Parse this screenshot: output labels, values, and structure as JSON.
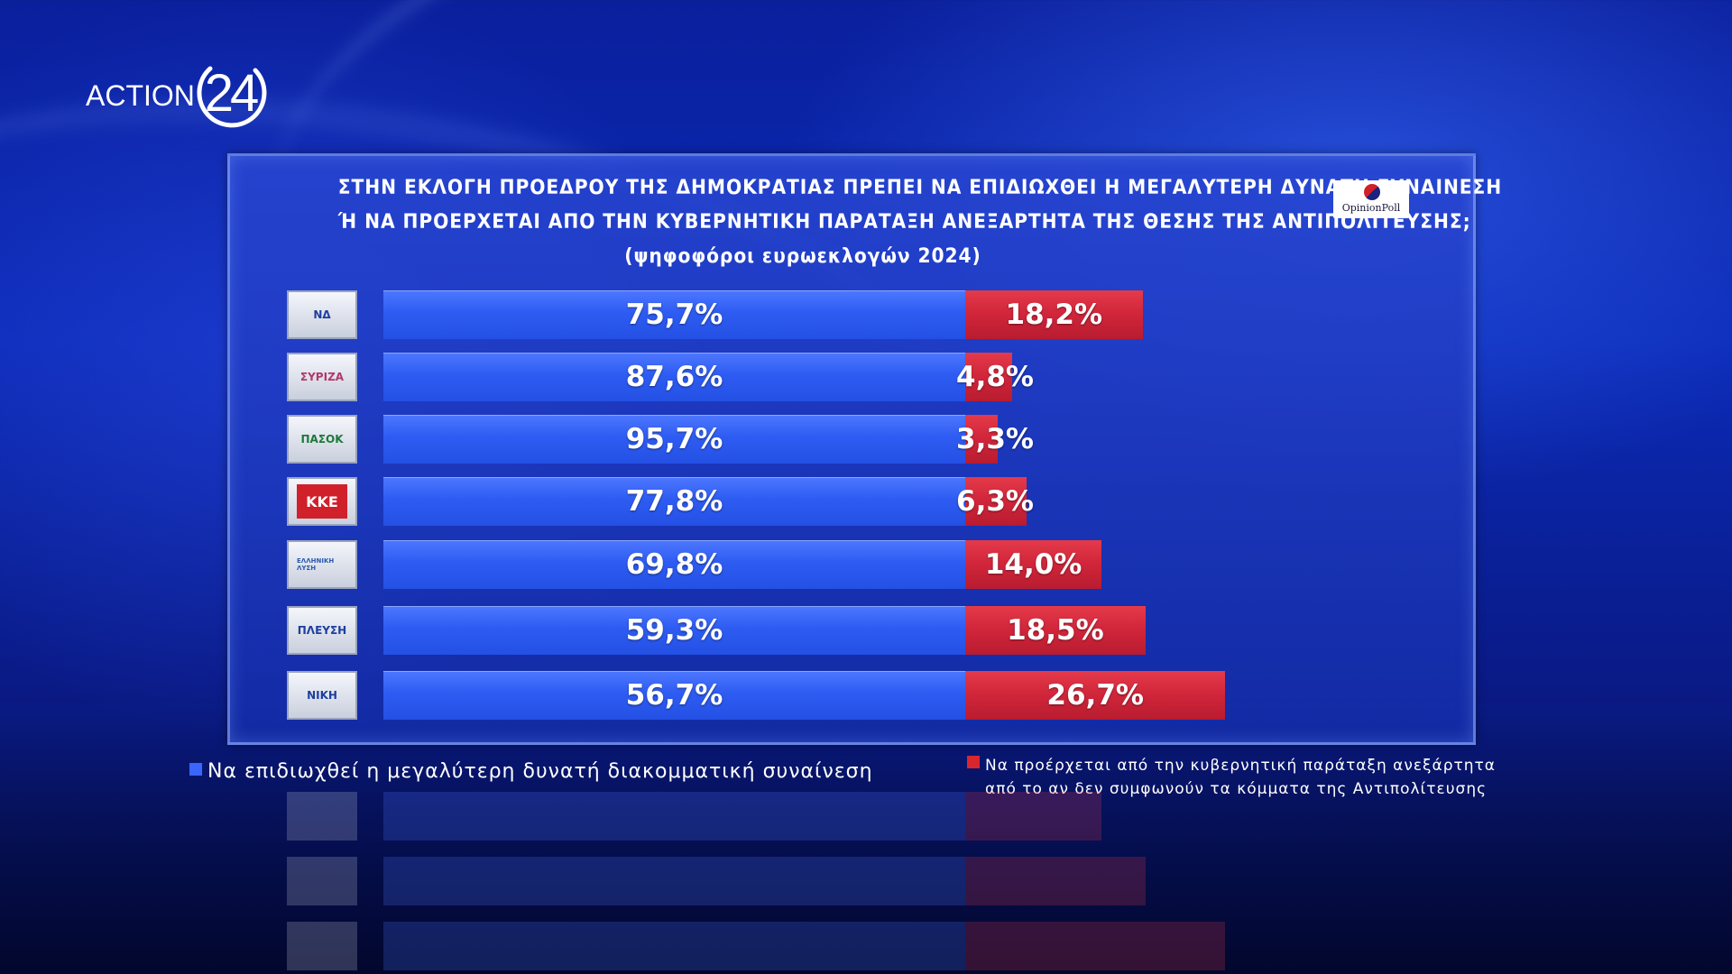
{
  "brand": {
    "logo_text": "ACTION",
    "logo_number": "24"
  },
  "pollster": {
    "name": "OpinionPoll"
  },
  "title": {
    "line1": "ΣΤΗΝ ΕΚΛΟΓΗ ΠΡΟΕΔΡΟΥ ΤΗΣ ΔΗΜΟΚΡΑΤΙΑΣ ΠΡΕΠΕΙ ΝΑ ΕΠΙΔΙΩΧΘΕΙ Η ΜΕΓΑΛΥΤΕΡΗ ΔΥΝΑΤΗ ΣΥΝΑΙΝΕΣΗ",
    "line2": "Ή ΝΑ ΠΡΟΕΡΧΕΤΑΙ ΑΠΟ ΤΗΝ ΚΥΒΕΡΝΗΤΙΚΗ ΠΑΡΑΤΑΞΗ ΑΝΕΞΑΡΤΗΤΑ ΤΗΣ ΘΕΣΗΣ ΤΗΣ ΑΝΤΙΠΟΛΙΤΕΥΣΗΣ;",
    "line3": "(ψηφοφόροι ευρωεκλογών 2024)"
  },
  "legend": {
    "blue": "Να επιδιωχθεί η μεγαλύτερη δυνατή διακομματική συναίνεση",
    "red_line1": "Να προέρχεται από την κυβερνητική παράταξη ανεξάρτητα",
    "red_line2": "από το αν δεν συμφωνούν τα κόμματα της Αντιπολίτευσης"
  },
  "colors": {
    "blue": "#2e5cf2",
    "red": "#d0253a"
  },
  "chart_data": {
    "type": "bar",
    "categories": [
      "ΝΔ",
      "ΣΥΡΙΖΑ",
      "ΠΑΣΟΚ",
      "ΚΚΕ",
      "ΕΛΛΗΝΙΚΗ ΛΥΣΗ",
      "ΠΛΕΥΣΗ ΕΛΕΥΘΕΡΙΑΣ",
      "ΝΙΚΗ"
    ],
    "series": [
      {
        "name": "Να επιδιωχθεί η μεγαλύτερη δυνατή διακομματική συναίνεση",
        "values": [
          75.7,
          87.6,
          95.7,
          77.8,
          69.8,
          59.3,
          56.7
        ],
        "labels": [
          "75,7%",
          "87,6%",
          "95,7%",
          "77,8%",
          "69,8%",
          "59,3%",
          "56,7%"
        ]
      },
      {
        "name": "Να προέρχεται από την κυβερνητική παράταξη ανεξάρτητα από το αν δεν συμφωνούν τα κόμματα της Αντιπολίτευσης",
        "values": [
          18.2,
          4.8,
          3.3,
          6.3,
          14.0,
          18.5,
          26.7
        ],
        "labels": [
          "18,2%",
          "4,8%",
          "3,3%",
          "6,3%",
          "14,0%",
          "18,5%",
          "26,7%"
        ]
      }
    ],
    "badge_text": [
      "ΝΔ",
      "ΣΥΡΙΖΑ",
      "ΠΑΣΟΚ",
      "ΚΚΕ",
      "ΕΛΛΗΝΙΚΗ ΛΥΣΗ",
      "ΠΛΕΥΣΗ",
      "ΝΙΚΗ"
    ],
    "title": "",
    "xlabel": "",
    "ylabel": "",
    "orientation": "horizontal",
    "stacked": true,
    "legend_position": "bottom",
    "grid": false
  }
}
